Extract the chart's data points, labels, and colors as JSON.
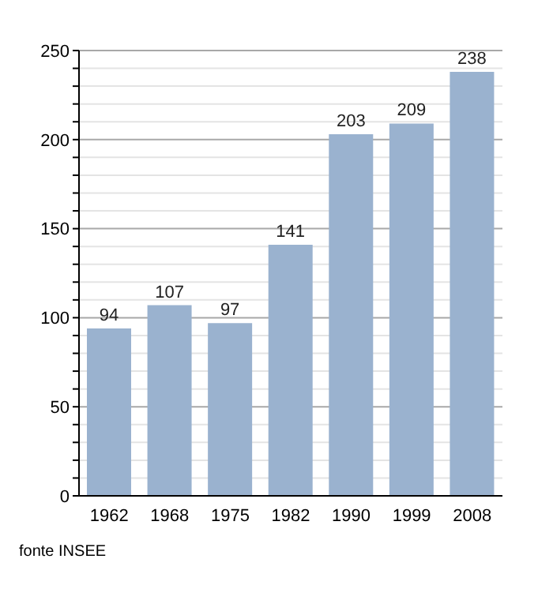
{
  "chart_data": {
    "type": "bar",
    "categories": [
      "1962",
      "1968",
      "1975",
      "1982",
      "1990",
      "1999",
      "2008"
    ],
    "values": [
      94,
      107,
      97,
      141,
      203,
      209,
      238
    ],
    "color": "#9ab2cf",
    "data_labels": true,
    "ylim": [
      0,
      250
    ],
    "yticks": [
      0,
      {
        "value": 10,
        "label": null
      },
      {
        "value": 20,
        "label": null
      },
      {
        "value": 30,
        "label": null
      },
      {
        "value": 40,
        "label": null
      },
      50,
      {
        "value": 60,
        "label": null
      },
      {
        "value": 70,
        "label": null
      },
      {
        "value": 80,
        "label": null
      },
      {
        "value": 90,
        "label": null
      },
      100,
      {
        "value": 110,
        "label": null
      },
      {
        "value": 120,
        "label": null
      },
      {
        "value": 130,
        "label": null
      },
      {
        "value": 140,
        "label": null
      },
      150,
      {
        "value": 160,
        "label": null
      },
      {
        "value": 170,
        "label": null
      },
      {
        "value": 180,
        "label": null
      },
      {
        "value": 190,
        "label": null
      },
      200,
      {
        "value": 210,
        "label": null
      },
      {
        "value": 220,
        "label": null
      },
      {
        "value": 230,
        "label": null
      },
      {
        "value": 240,
        "label": null
      },
      250
    ],
    "grid": "y",
    "annotations": [
      "fonte INSEE"
    ]
  }
}
